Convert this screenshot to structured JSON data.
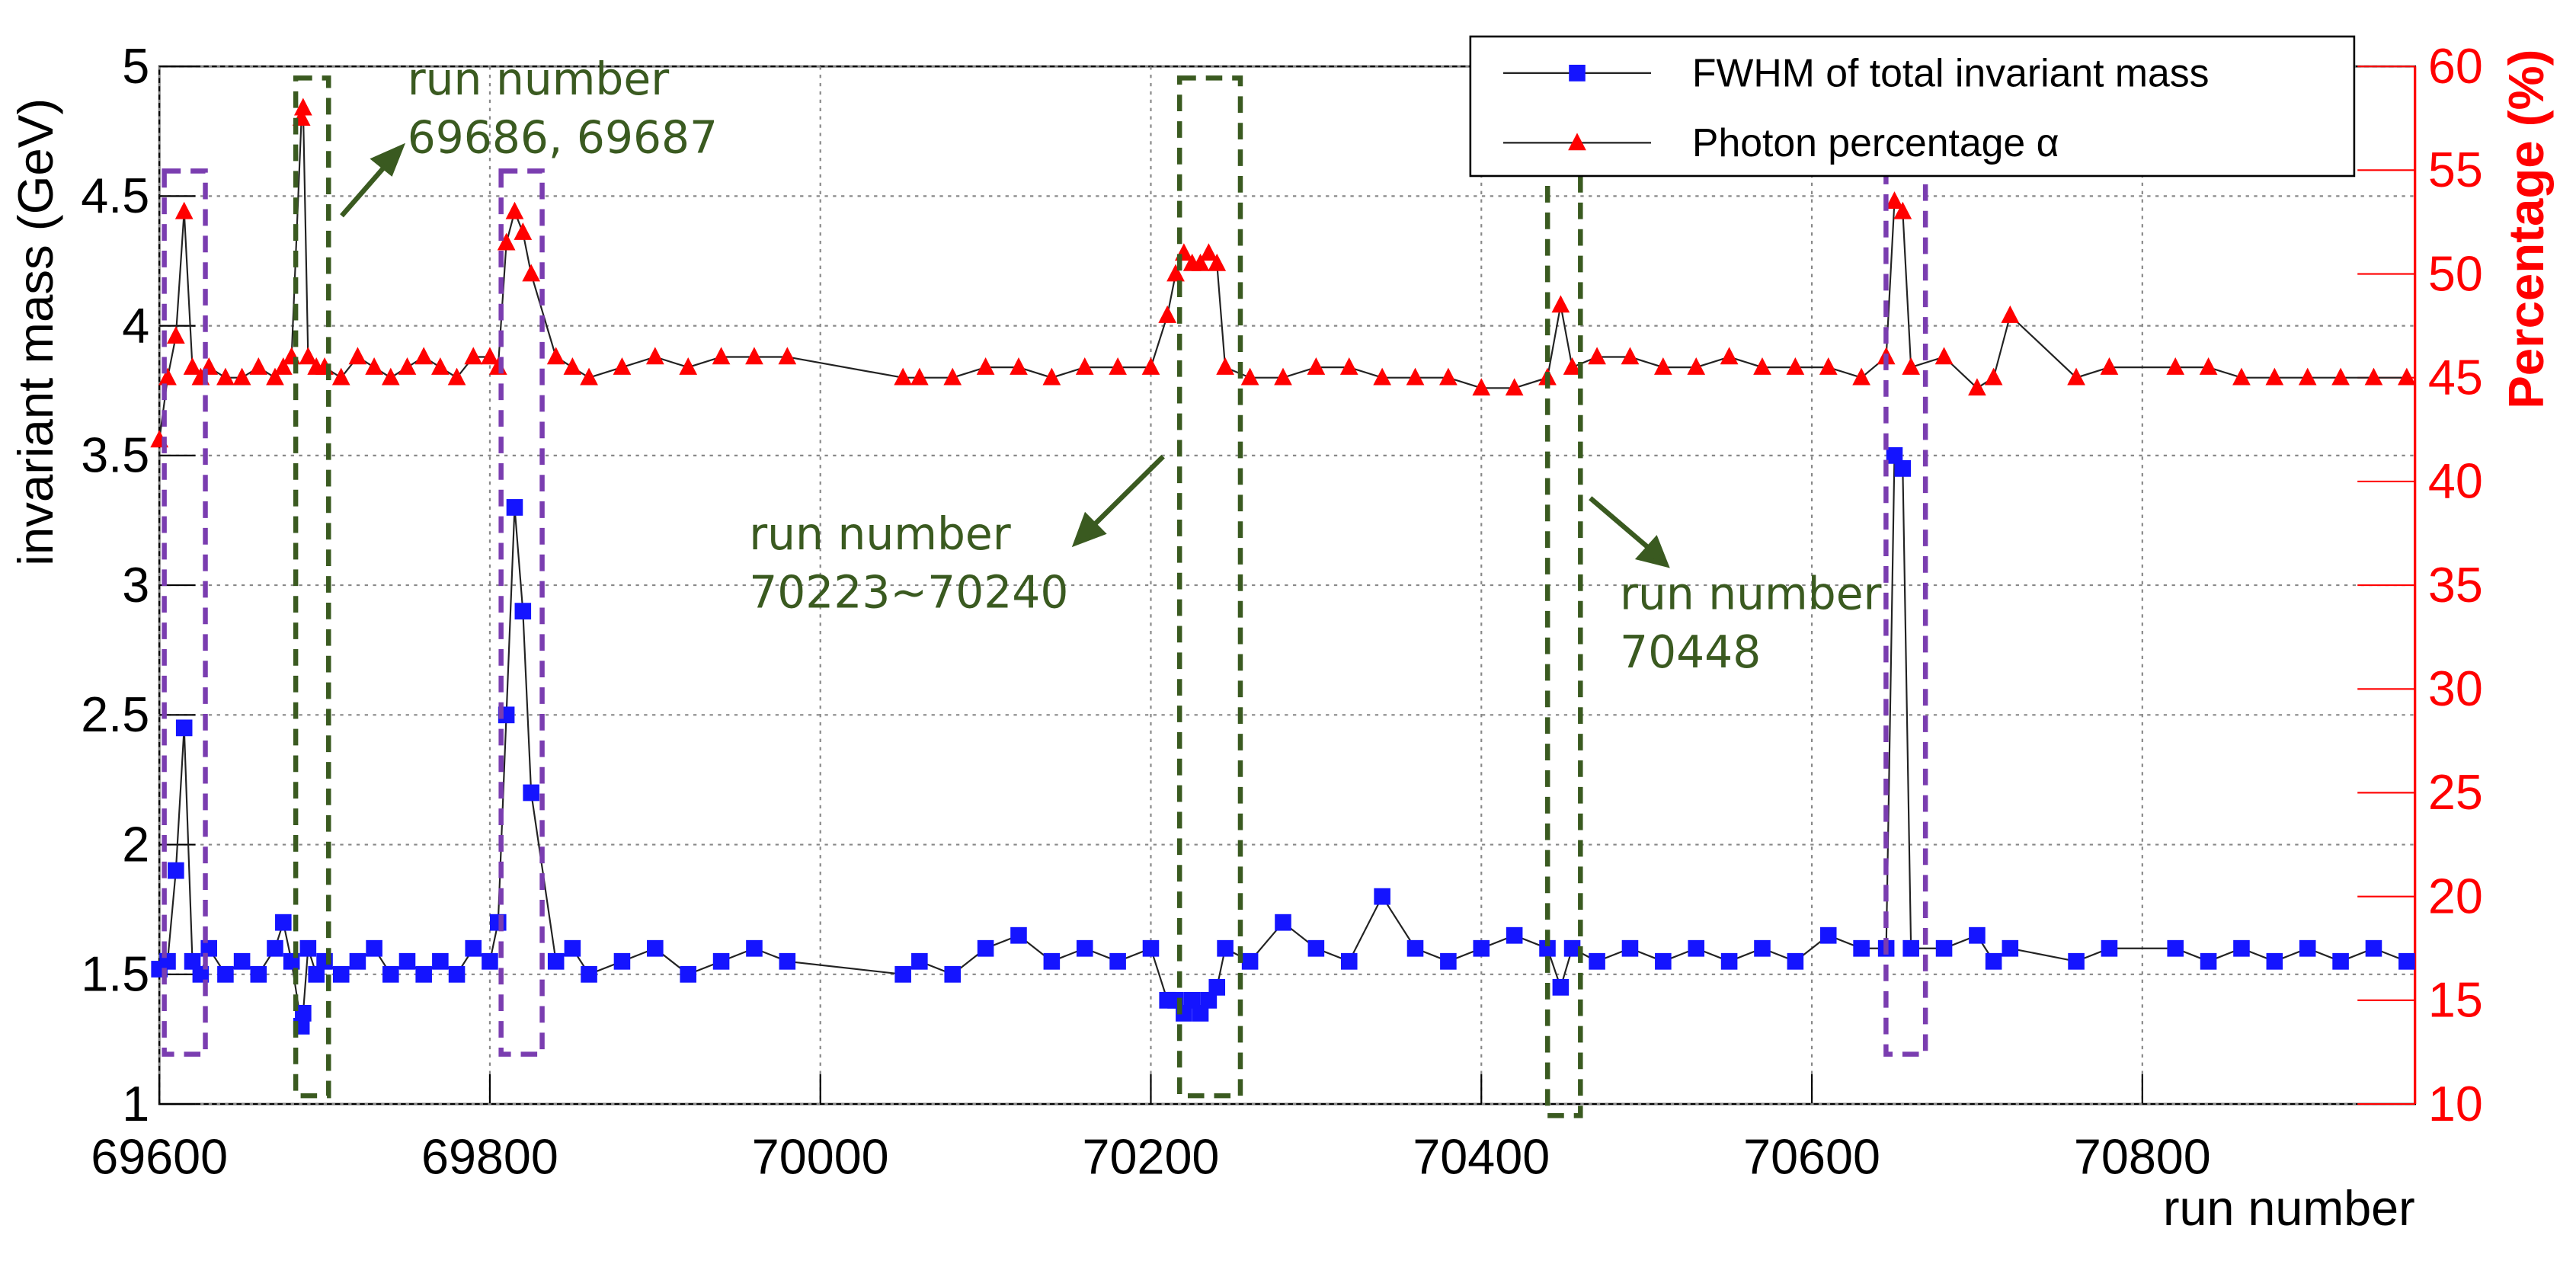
{
  "chart_data": {
    "type": "scatter",
    "x_label": "run number",
    "y_label": "invariant mass (GeV)",
    "y2_label": "Percentage (%)",
    "xlim": [
      69600,
      70965
    ],
    "xticks": [
      69600,
      69800,
      70000,
      70200,
      70400,
      70600,
      70800
    ],
    "ylim": [
      1,
      5
    ],
    "yticks": [
      1,
      1.5,
      2,
      2.5,
      3,
      3.5,
      4,
      4.5,
      5
    ],
    "y2lim": [
      10,
      60
    ],
    "y2ticks": [
      10,
      15,
      20,
      25,
      30,
      35,
      40,
      45,
      50,
      55,
      60
    ],
    "grid": true,
    "y2_color": "#ff0000",
    "x": [
      69600,
      69605,
      69610,
      69615,
      69620,
      69625,
      69630,
      69640,
      69650,
      69660,
      69670,
      69675,
      69680,
      69686,
      69687,
      69690,
      69695,
      69700,
      69710,
      69720,
      69730,
      69740,
      69750,
      69760,
      69770,
      69780,
      69790,
      69800,
      69805,
      69810,
      69815,
      69820,
      69825,
      69840,
      69850,
      69860,
      69880,
      69900,
      69920,
      69940,
      69960,
      69980,
      70050,
      70060,
      70080,
      70100,
      70120,
      70140,
      70160,
      70180,
      70200,
      70210,
      70215,
      70220,
      70225,
      70230,
      70235,
      70240,
      70245,
      70260,
      70280,
      70300,
      70320,
      70340,
      70360,
      70380,
      70400,
      70420,
      70440,
      70448,
      70455,
      70470,
      70490,
      70510,
      70530,
      70550,
      70570,
      70590,
      70610,
      70630,
      70645,
      70650,
      70655,
      70660,
      70680,
      70700,
      70710,
      70720,
      70760,
      70780,
      70820,
      70840,
      70860,
      70880,
      70900,
      70920,
      70940,
      70960
    ],
    "series": [
      {
        "name": "FWHM of total invariant mass",
        "color": "#1414ff",
        "marker": "square",
        "values": [
          1.52,
          1.55,
          1.9,
          2.45,
          1.55,
          1.5,
          1.6,
          1.5,
          1.55,
          1.5,
          1.6,
          1.7,
          1.55,
          1.3,
          1.35,
          1.6,
          1.5,
          1.55,
          1.5,
          1.55,
          1.6,
          1.5,
          1.55,
          1.5,
          1.55,
          1.5,
          1.6,
          1.55,
          1.7,
          2.5,
          3.3,
          2.9,
          2.2,
          1.55,
          1.6,
          1.5,
          1.55,
          1.6,
          1.5,
          1.55,
          1.6,
          1.55,
          1.5,
          1.55,
          1.5,
          1.6,
          1.65,
          1.55,
          1.6,
          1.55,
          1.6,
          1.4,
          1.4,
          1.35,
          1.4,
          1.35,
          1.4,
          1.45,
          1.6,
          1.55,
          1.7,
          1.6,
          1.55,
          1.8,
          1.6,
          1.55,
          1.6,
          1.65,
          1.6,
          1.45,
          1.6,
          1.55,
          1.6,
          1.55,
          1.6,
          1.55,
          1.6,
          1.55,
          1.65,
          1.6,
          1.6,
          3.5,
          3.45,
          1.6,
          1.6,
          1.65,
          1.55,
          1.6,
          1.55,
          1.6,
          1.6,
          1.55,
          1.6,
          1.55,
          1.6,
          1.55,
          1.6,
          1.55
        ]
      },
      {
        "name": "Photon percentage α",
        "color": "#ff0000",
        "marker": "triangle",
        "axis": "y2",
        "values": [
          42,
          45,
          47,
          53,
          45.5,
          45,
          45.5,
          45,
          45,
          45.5,
          45,
          45.5,
          46,
          57.5,
          58,
          46,
          45.5,
          45.5,
          45,
          46,
          45.5,
          45,
          45.5,
          46,
          45.5,
          45,
          46,
          46,
          45.5,
          51.5,
          53,
          52,
          50,
          46,
          45.5,
          45,
          45.5,
          46,
          45.5,
          46,
          46,
          46,
          45,
          45,
          45,
          45.5,
          45.5,
          45,
          45.5,
          45.5,
          45.5,
          48,
          50,
          51,
          50.5,
          50.5,
          51,
          50.5,
          45.5,
          45,
          45,
          45.5,
          45.5,
          45,
          45,
          45,
          44.5,
          44.5,
          45,
          48.5,
          45.5,
          46,
          46,
          45.5,
          45.5,
          46,
          45.5,
          45.5,
          45.5,
          45,
          46,
          53.5,
          53,
          45.5,
          46,
          44.5,
          45,
          48,
          45,
          45.5,
          45.5,
          45.5,
          45,
          45,
          45,
          45,
          45,
          45
        ]
      }
    ],
    "annotations": [
      {
        "lines": [
          "run number",
          "69686, 69687"
        ]
      },
      {
        "lines": [
          "run number",
          "70223~70240"
        ]
      },
      {
        "lines": [
          "run number",
          "70448"
        ]
      }
    ]
  }
}
